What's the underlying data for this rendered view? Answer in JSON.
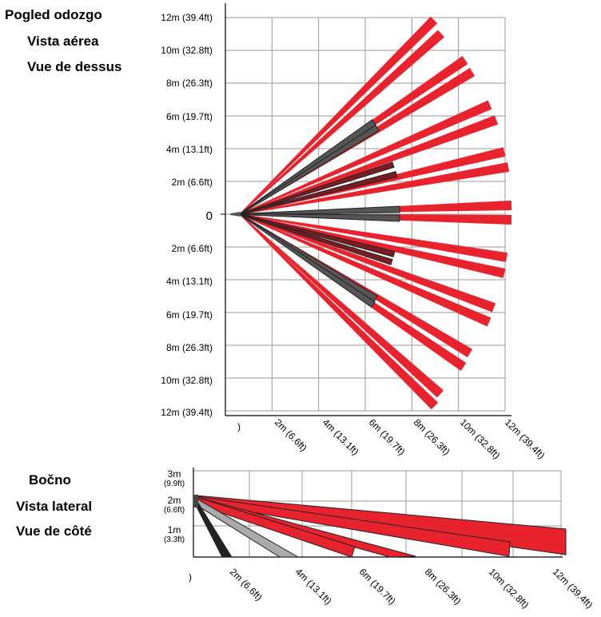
{
  "top_view": {
    "labels": [
      "Pogled odozgo",
      "Vista aérea",
      "Vue de dessus"
    ],
    "y_ticks": [
      "12m (39.4ft)",
      "10m (32.8ft)",
      "8m (26.3ft)",
      "6m (19.7ft)",
      "4m (13.1ft)",
      "2m (6.6ft)",
      "0",
      "2m (6.6ft)",
      "4m (13.1ft)",
      "6m (19.7ft)",
      "8m (26.3ft)",
      "10m (32.8ft)",
      "12m (39.4ft)"
    ],
    "x_ticks": [
      ")",
      "2m (6.6ft)",
      "4m (13.1ft)",
      "6m (19.7ft)",
      "8m (26.3ft)",
      "10m (32.8ft)",
      "12m (39.4ft)"
    ]
  },
  "side_view": {
    "labels": [
      "Bočno",
      "Vista lateral",
      "Vue de côté"
    ],
    "y_ticks": [
      {
        "m": "3m",
        "ft": "(9.9ft)"
      },
      {
        "m": "2m",
        "ft": "(6.6ft)"
      },
      {
        "m": "1m",
        "ft": "(3.3ft)"
      }
    ],
    "x_ticks": [
      ")",
      "2m (6.6ft)",
      "4m (13.1ft)",
      "6m (19.7ft)",
      "8m (26.3ft)",
      "10m (32.8ft)",
      "12m (39.4ft)"
    ]
  },
  "colors": {
    "long_range": "#e8232d",
    "short_range": "#555555",
    "grid": "#9a9a9a",
    "side_gray": "#aaaaaa"
  }
}
